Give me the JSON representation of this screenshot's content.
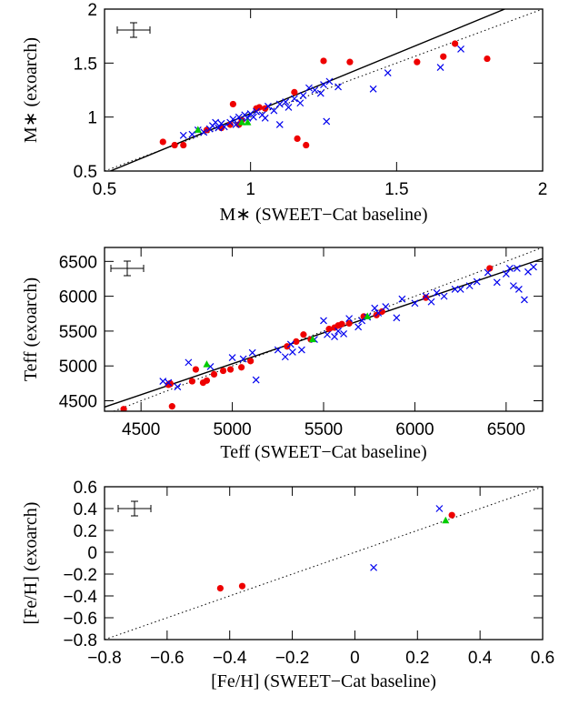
{
  "chart_data": [
    {
      "type": "scatter",
      "x_label": "M∗ (SWEET−Cat baseline)",
      "y_label": "M∗ (exoarch)",
      "xlim": [
        0.5,
        2
      ],
      "ylim": [
        0.5,
        2
      ],
      "xticks": [
        0.5,
        1,
        1.5,
        2
      ],
      "yticks": [
        0.5,
        1,
        1.5,
        2
      ],
      "lines": [
        {
          "style": "solid",
          "x": [
            0.52,
            1.87
          ],
          "y": [
            0.5,
            2
          ]
        },
        {
          "style": "dotted",
          "x": [
            0.5,
            2
          ],
          "y": [
            0.5,
            2
          ]
        }
      ],
      "series": [
        {
          "marker": "circle",
          "color": "#ee0000",
          "x": [
            0.7,
            0.74,
            0.77,
            0.85,
            0.9,
            0.93,
            0.96,
            0.97,
            1.02,
            0.94,
            1.03,
            1.05,
            1.16,
            1.19,
            1.15,
            1.25,
            1.34,
            1.57,
            1.66,
            1.7,
            1.81
          ],
          "values": [
            0.77,
            0.74,
            0.74,
            0.88,
            0.9,
            0.93,
            0.93,
            0.97,
            1.08,
            1.12,
            1.09,
            1.08,
            0.8,
            0.74,
            1.23,
            1.52,
            1.51,
            1.51,
            1.56,
            1.68,
            1.54
          ]
        },
        {
          "marker": "cross",
          "color": "#0000ee",
          "x": [
            0.77,
            0.8,
            0.82,
            0.84,
            0.86,
            0.87,
            0.88,
            0.89,
            0.9,
            0.91,
            0.93,
            0.94,
            0.95,
            0.96,
            0.97,
            0.98,
            0.99,
            1.0,
            1.01,
            1.02,
            1.04,
            1.05,
            1.06,
            1.08,
            1.1,
            1.12,
            1.13,
            1.15,
            1.17,
            1.18,
            1.2,
            1.22,
            1.24,
            1.25,
            1.26,
            1.27,
            1.3,
            1.42,
            1.47,
            1.65,
            1.72,
            1.1
          ],
          "values": [
            0.83,
            0.84,
            0.88,
            0.86,
            0.89,
            0.92,
            0.95,
            0.9,
            0.94,
            0.91,
            0.95,
            0.98,
            0.93,
            1.0,
            0.96,
            1.02,
            0.99,
            1.03,
            1.0,
            1.05,
            1.02,
            0.99,
            1.1,
            1.06,
            1.12,
            1.14,
            1.09,
            1.17,
            1.13,
            1.2,
            1.27,
            1.25,
            1.22,
            1.3,
            0.96,
            1.33,
            1.28,
            1.26,
            1.41,
            1.46,
            1.63,
            0.93
          ]
        },
        {
          "marker": "triangle",
          "color": "#00cc00",
          "x": [
            0.82,
            0.97,
            0.99
          ],
          "values": [
            0.88,
            0.95,
            0.95
          ]
        }
      ]
    },
    {
      "type": "scatter",
      "x_label": "Teff (SWEET−Cat baseline)",
      "y_label": "Teff (exoarch)",
      "xlim": [
        4300,
        6700
      ],
      "ylim": [
        4350,
        6700
      ],
      "xticks": [
        4500,
        5000,
        5500,
        6000,
        6500
      ],
      "yticks": [
        4500,
        5000,
        5500,
        6000,
        6500
      ],
      "lines": [
        {
          "style": "solid",
          "x": [
            4300,
            6700
          ],
          "y": [
            4410,
            6540
          ]
        },
        {
          "style": "dotted",
          "x": [
            4350,
            6700
          ],
          "y": [
            4350,
            6700
          ]
        }
      ],
      "series": [
        {
          "marker": "circle",
          "color": "#ee0000",
          "x": [
            4405,
            4650,
            4660,
            4670,
            4780,
            4800,
            4840,
            4860,
            4900,
            4950,
            4990,
            5050,
            5100,
            5300,
            5350,
            5390,
            5430,
            5530,
            5560,
            5580,
            5600,
            5640,
            5720,
            5790,
            5820,
            6060,
            6410,
            4660
          ],
          "values": [
            4380,
            4730,
            4750,
            4420,
            4780,
            4950,
            4760,
            4790,
            4880,
            4930,
            4950,
            4980,
            5070,
            5280,
            5350,
            5450,
            5380,
            5530,
            5550,
            5580,
            5600,
            5610,
            5710,
            5730,
            5780,
            5980,
            6400,
            4740
          ]
        },
        {
          "marker": "cross",
          "color": "#0000ee",
          "x": [
            4620,
            4650,
            4700,
            4760,
            4880,
            5000,
            5060,
            5110,
            5130,
            5250,
            5290,
            5320,
            5330,
            5380,
            5450,
            5500,
            5520,
            5560,
            5580,
            5610,
            5640,
            5690,
            5710,
            5740,
            5780,
            5800,
            5840,
            5900,
            5930,
            6000,
            6060,
            6090,
            6120,
            6160,
            6220,
            6250,
            6300,
            6340,
            6400,
            6450,
            6500,
            6520,
            6560,
            6570,
            6600,
            6620,
            6650,
            6540
          ],
          "values": [
            4780,
            4760,
            4700,
            5050,
            4990,
            5120,
            5100,
            5190,
            4800,
            5230,
            5130,
            5310,
            5200,
            5230,
            5380,
            5650,
            5450,
            5420,
            5500,
            5460,
            5680,
            5560,
            5650,
            5700,
            5830,
            5760,
            5850,
            5690,
            5960,
            5900,
            6000,
            5920,
            6050,
            6000,
            6100,
            6100,
            6150,
            6210,
            6340,
            6200,
            6320,
            6400,
            6400,
            6100,
            5950,
            6350,
            6420,
            6150
          ]
        },
        {
          "marker": "triangle",
          "color": "#00cc00",
          "x": [
            4860,
            5440,
            5740
          ],
          "values": [
            5020,
            5380,
            5710
          ]
        }
      ]
    },
    {
      "type": "scatter",
      "x_label": "[Fe/H] (SWEET−Cat baseline)",
      "y_label": "[Fe/H] (exoarch)",
      "xlim": [
        -0.8,
        0.6
      ],
      "ylim": [
        -0.8,
        0.6
      ],
      "xticks": [
        {
          "value": -0.8,
          "label": "−0.8"
        },
        {
          "value": -0.6,
          "label": "−0.6"
        },
        {
          "value": -0.4,
          "label": "−0.4"
        },
        {
          "value": -0.2,
          "label": "−0.2"
        },
        0,
        0.2,
        0.4,
        0.6
      ],
      "yticks": [
        {
          "value": -0.8,
          "label": "−0.8"
        },
        {
          "value": -0.6,
          "label": "−0.6"
        },
        {
          "value": -0.4,
          "label": "−0.4"
        },
        {
          "value": -0.2,
          "label": "−0.2"
        },
        0,
        0.2,
        0.4,
        0.6
      ],
      "lines": [
        {
          "style": "dotted",
          "x": [
            -0.8,
            0.6
          ],
          "y": [
            -0.8,
            0.6
          ]
        }
      ],
      "series": [
        {
          "marker": "circle",
          "color": "#ee0000",
          "x": [
            -0.43,
            -0.36,
            0.31
          ],
          "values": [
            -0.33,
            -0.31,
            0.34
          ]
        },
        {
          "marker": "cross",
          "color": "#0000ee",
          "x": [
            0.06,
            0.27
          ],
          "values": [
            -0.14,
            0.4
          ]
        },
        {
          "marker": "triangle",
          "color": "#00cc00",
          "x": [
            0.29
          ],
          "values": [
            0.29
          ]
        }
      ]
    }
  ]
}
